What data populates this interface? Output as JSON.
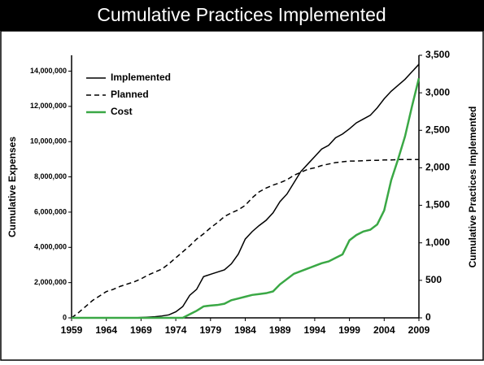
{
  "chart_data": {
    "type": "line",
    "title": "Cumulative Practices Implemented",
    "ylabel": "Cumulative Expenses",
    "y2label": "Cumulative Practices Implemented",
    "x": [
      1959,
      1960,
      1961,
      1962,
      1963,
      1964,
      1965,
      1966,
      1967,
      1968,
      1969,
      1970,
      1971,
      1972,
      1973,
      1974,
      1975,
      1976,
      1977,
      1978,
      1979,
      1980,
      1981,
      1982,
      1983,
      1984,
      1985,
      1986,
      1987,
      1988,
      1989,
      1990,
      1991,
      1992,
      1993,
      1994,
      1995,
      1996,
      1997,
      1998,
      1999,
      2000,
      2001,
      2002,
      2003,
      2004,
      2005,
      2006,
      2007,
      2008,
      2009
    ],
    "xlim": [
      1959,
      2009
    ],
    "xticks": [
      1959,
      1964,
      1969,
      1974,
      1979,
      1984,
      1989,
      1994,
      1999,
      2004,
      2009
    ],
    "ylim": [
      0,
      14900000
    ],
    "yticks": [
      0,
      {
        "value": 2000000,
        "label": "2,000,000"
      },
      {
        "value": 4000000,
        "label": "4,000,000"
      },
      {
        "value": 6000000,
        "label": "6,000,000"
      },
      {
        "value": 8000000,
        "label": "8,000,000"
      },
      {
        "value": 10000000,
        "label": "10,000,000"
      },
      {
        "value": 12000000,
        "label": "12,000,000"
      },
      {
        "value": 14000000,
        "label": "14,000,000"
      }
    ],
    "y2lim": [
      0,
      3500
    ],
    "y2ticks": [
      0,
      500,
      {
        "value": 1000,
        "label": "1,000"
      },
      {
        "value": 1500,
        "label": "1,500"
      },
      {
        "value": 2000,
        "label": "2,000"
      },
      {
        "value": 2500,
        "label": "2,500"
      },
      {
        "value": 3000,
        "label": "3,000"
      },
      {
        "value": 3500,
        "label": "3,500"
      }
    ],
    "legend": "upper left",
    "series": [
      {
        "name": "Implemented",
        "color": "#000000",
        "linestyle": "solid",
        "axis": "y2",
        "values": [
          0,
          0,
          0,
          0,
          0,
          0,
          0,
          0,
          0,
          0,
          5,
          10,
          15,
          25,
          40,
          80,
          150,
          300,
          380,
          550,
          580,
          610,
          640,
          720,
          850,
          1050,
          1150,
          1230,
          1300,
          1400,
          1550,
          1650,
          1800,
          1950,
          2050,
          2150,
          2250,
          2300,
          2400,
          2450,
          2520,
          2600,
          2650,
          2700,
          2800,
          2920,
          3020,
          3100,
          3180,
          3280,
          3380
        ]
      },
      {
        "name": "Planned",
        "color": "#000000",
        "linestyle": "dashed",
        "axis": "y2",
        "values": [
          0,
          70,
          150,
          230,
          290,
          350,
          380,
          420,
          450,
          480,
          520,
          570,
          610,
          650,
          720,
          800,
          880,
          960,
          1050,
          1120,
          1200,
          1270,
          1350,
          1400,
          1440,
          1500,
          1600,
          1680,
          1730,
          1770,
          1800,
          1840,
          1900,
          1940,
          1980,
          2000,
          2030,
          2050,
          2070,
          2080,
          2090,
          2090,
          2095,
          2100,
          2100,
          2105,
          2105,
          2110,
          2110,
          2110,
          2110
        ]
      },
      {
        "name": "Cost",
        "color": "#3aa845",
        "linestyle": "solid",
        "axis": "y",
        "values": [
          0,
          0,
          0,
          0,
          0,
          0,
          0,
          0,
          0,
          0,
          0,
          0,
          0,
          0,
          0,
          0,
          0,
          200000,
          400000,
          650000,
          700000,
          730000,
          800000,
          1000000,
          1100000,
          1200000,
          1300000,
          1350000,
          1400000,
          1500000,
          1900000,
          2200000,
          2500000,
          2650000,
          2800000,
          2950000,
          3100000,
          3200000,
          3400000,
          3600000,
          4400000,
          4700000,
          4900000,
          5000000,
          5300000,
          6100000,
          7800000,
          9000000,
          10300000,
          12000000,
          13600000
        ]
      }
    ]
  }
}
